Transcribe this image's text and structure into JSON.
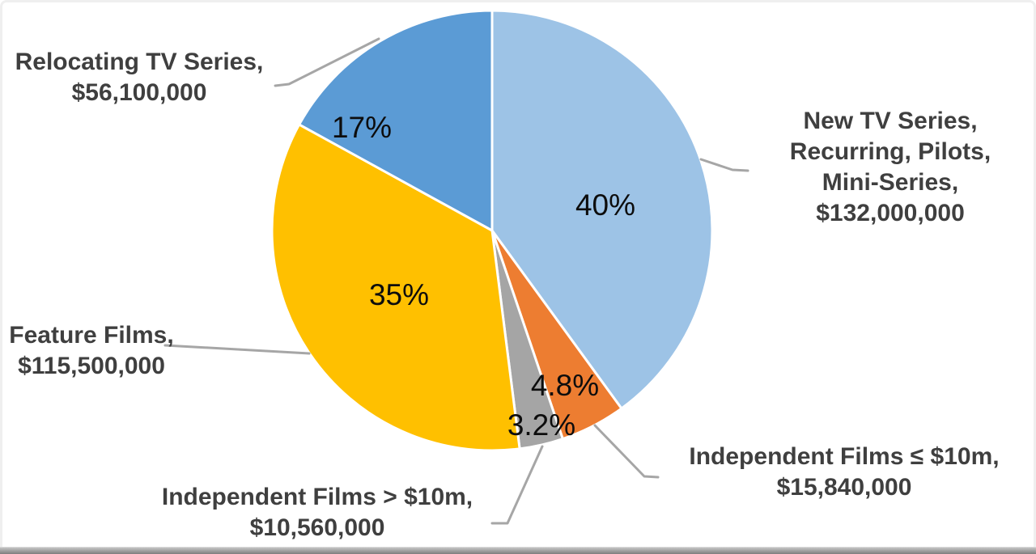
{
  "chart_data": {
    "type": "pie",
    "title": "",
    "unit": "USD",
    "legend_position": "none",
    "start_angle_deg": 0,
    "direction": "clockwise",
    "slice_border_color": "#FFFFFF",
    "leader_line_color": "#A6A6A6",
    "slices": [
      {
        "label": "New TV Series, Recurring, Pilots, Mini-Series",
        "value": 132000000,
        "value_label": "$132,000,000",
        "percent": 40,
        "percent_label": "40%",
        "color": "#9DC3E6"
      },
      {
        "label": "Independent Films ≤ $10m",
        "value": 15840000,
        "value_label": "$15,840,000",
        "percent": 4.8,
        "percent_label": "4.8%",
        "color": "#ED7D31"
      },
      {
        "label": "Independent Films > $10m",
        "value": 10560000,
        "value_label": "$10,560,000",
        "percent": 3.2,
        "percent_label": "3.2%",
        "color": "#A5A5A5"
      },
      {
        "label": "Feature Films",
        "value": 115500000,
        "value_label": "$115,500,000",
        "percent": 35,
        "percent_label": "35%",
        "color": "#FFC000"
      },
      {
        "label": "Relocating TV Series",
        "value": 56100000,
        "value_label": "$56,100,000",
        "percent": 17,
        "percent_label": "17%",
        "color": "#5B9BD5"
      }
    ]
  },
  "callouts": {
    "new_tv": {
      "lines": [
        "New TV Series,",
        "Recurring, Pilots,",
        "Mini-Series,",
        "$132,000,000"
      ]
    },
    "relocating": {
      "lines": [
        "Relocating TV Series,",
        "$56,100,000"
      ]
    },
    "feature": {
      "lines": [
        "Feature Films,",
        "$115,500,000"
      ]
    },
    "indep_gt": {
      "lines": [
        "Independent Films > $10m,",
        "$10,560,000"
      ]
    },
    "indep_le": {
      "lines": [
        "Independent Films ≤ $10m,",
        "$15,840,000"
      ]
    }
  }
}
